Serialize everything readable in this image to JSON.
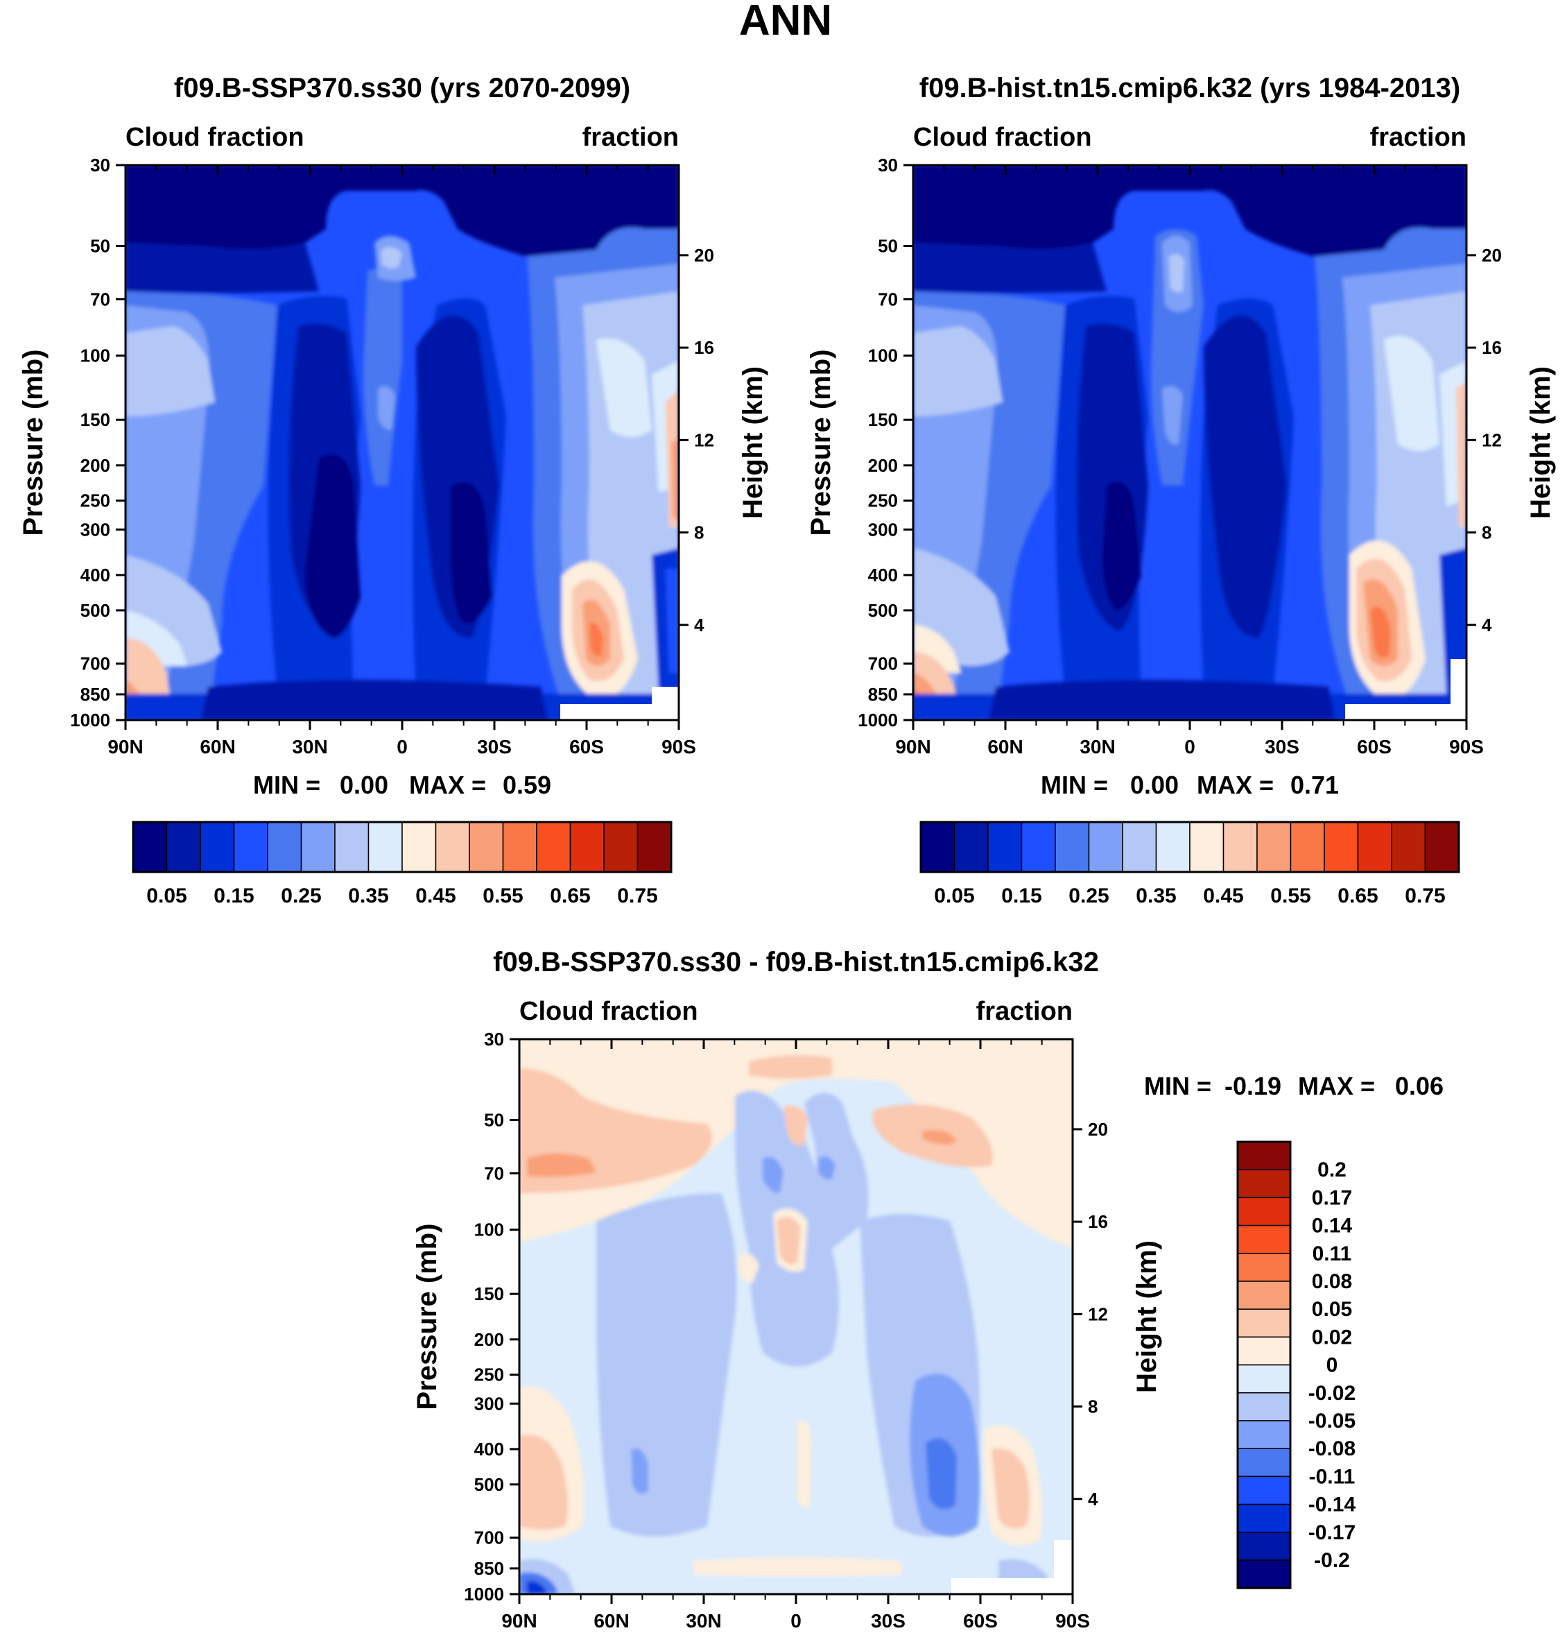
{
  "figure_title": "ANN",
  "colors": {
    "model_palette": [
      "#000080",
      "#0018a8",
      "#0030d8",
      "#1e50ff",
      "#4a78f0",
      "#7ea0f8",
      "#b4c8f8",
      "#dcecfc",
      "#fdeedd",
      "#fbc8b0",
      "#f9a078",
      "#fa7848",
      "#f85020",
      "#e03010",
      "#b82008",
      "#880808"
    ],
    "diff_palette": [
      "#000080",
      "#0018a8",
      "#0030d8",
      "#1e50ff",
      "#4a78f0",
      "#7ea0f8",
      "#b4c8f8",
      "#dcecfc",
      "#fdeedd",
      "#fbc8b0",
      "#f9a078",
      "#fa7848",
      "#f85020",
      "#e03010",
      "#b82008",
      "#880808"
    ]
  },
  "chart_data": [
    {
      "type": "contour",
      "id": "panel_a",
      "title": "f09.B-SSP370.ss30 (yrs 2070-2099)",
      "left_label": "Cloud fraction",
      "right_label": "fraction",
      "ylabel": "Pressure (mb)",
      "ylabel_right": "Height (km)",
      "x_ticks": [
        "90N",
        "60N",
        "30N",
        "0",
        "30S",
        "60S",
        "90S"
      ],
      "x_values": [
        90,
        60,
        30,
        0,
        -30,
        -60,
        -90
      ],
      "y_ticks": [
        30,
        50,
        70,
        100,
        150,
        200,
        250,
        300,
        400,
        500,
        700,
        850,
        1000
      ],
      "y_tick_labels": [
        "30",
        "50",
        "70",
        "100",
        "150",
        "200",
        "250",
        "300",
        "400",
        "500",
        "700",
        "850",
        "1000"
      ],
      "y_range": [
        30,
        1000
      ],
      "height_ticks": [
        20,
        16,
        12,
        8,
        4
      ],
      "height_tick_labels": [
        "20",
        "16",
        "12",
        "8",
        "4"
      ],
      "stats": {
        "min_label": "MIN =",
        "min": "0.00",
        "max_label": "MAX =",
        "max": "0.59"
      },
      "colorbar": {
        "levels": [
          0.05,
          0.1,
          0.15,
          0.2,
          0.25,
          0.3,
          0.35,
          0.4,
          0.45,
          0.5,
          0.55,
          0.6,
          0.65,
          0.7,
          0.75
        ],
        "labels": [
          "0.05",
          "0.15",
          "0.25",
          "0.35",
          "0.45",
          "0.55",
          "0.65",
          "0.75"
        ]
      }
    },
    {
      "type": "contour",
      "id": "panel_b",
      "title": "f09.B-hist.tn15.cmip6.k32 (yrs 1984-2013)",
      "left_label": "Cloud fraction",
      "right_label": "fraction",
      "ylabel": "Pressure (mb)",
      "ylabel_right": "Height (km)",
      "x_ticks": [
        "90N",
        "60N",
        "30N",
        "0",
        "30S",
        "60S",
        "90S"
      ],
      "x_values": [
        90,
        60,
        30,
        0,
        -30,
        -60,
        -90
      ],
      "y_ticks": [
        30,
        50,
        70,
        100,
        150,
        200,
        250,
        300,
        400,
        500,
        700,
        850,
        1000
      ],
      "y_tick_labels": [
        "30",
        "50",
        "70",
        "100",
        "150",
        "200",
        "250",
        "300",
        "400",
        "500",
        "700",
        "850",
        "1000"
      ],
      "y_range": [
        30,
        1000
      ],
      "height_ticks": [
        20,
        16,
        12,
        8,
        4
      ],
      "height_tick_labels": [
        "20",
        "16",
        "12",
        "8",
        "4"
      ],
      "stats": {
        "min_label": "MIN =",
        "min": "0.00",
        "max_label": "MAX =",
        "max": "0.71"
      },
      "colorbar": {
        "levels": [
          0.05,
          0.1,
          0.15,
          0.2,
          0.25,
          0.3,
          0.35,
          0.4,
          0.45,
          0.5,
          0.55,
          0.6,
          0.65,
          0.7,
          0.75
        ],
        "labels": [
          "0.05",
          "0.15",
          "0.25",
          "0.35",
          "0.45",
          "0.55",
          "0.65",
          "0.75"
        ]
      }
    },
    {
      "type": "contour",
      "id": "panel_c",
      "title": "f09.B-SSP370.ss30 - f09.B-hist.tn15.cmip6.k32",
      "left_label": "Cloud fraction",
      "right_label": "fraction",
      "ylabel": "Pressure (mb)",
      "ylabel_right": "Height (km)",
      "x_ticks": [
        "90N",
        "60N",
        "30N",
        "0",
        "30S",
        "60S",
        "90S"
      ],
      "x_values": [
        90,
        60,
        30,
        0,
        -30,
        -60,
        -90
      ],
      "y_ticks": [
        30,
        50,
        70,
        100,
        150,
        200,
        250,
        300,
        400,
        500,
        700,
        850,
        1000
      ],
      "y_tick_labels": [
        "30",
        "50",
        "70",
        "100",
        "150",
        "200",
        "250",
        "300",
        "400",
        "500",
        "700",
        "850",
        "1000"
      ],
      "y_range": [
        30,
        1000
      ],
      "height_ticks": [
        20,
        16,
        12,
        8,
        4
      ],
      "height_tick_labels": [
        "20",
        "16",
        "12",
        "8",
        "4"
      ],
      "stats": {
        "min_label": "MIN =",
        "min": "-0.19",
        "max_label": "MAX =",
        "max": "0.06"
      },
      "colorbar": {
        "levels": [
          -0.2,
          -0.17,
          -0.14,
          -0.11,
          -0.08,
          -0.05,
          -0.02,
          0,
          0.02,
          0.05,
          0.08,
          0.11,
          0.14,
          0.17,
          0.2
        ],
        "labels": [
          "0.2",
          "0.17",
          "0.14",
          "0.11",
          "0.08",
          "0.05",
          "0.02",
          "0",
          "-0.02",
          "-0.05",
          "-0.08",
          "-0.11",
          "-0.14",
          "-0.17",
          "-0.2"
        ]
      }
    }
  ]
}
